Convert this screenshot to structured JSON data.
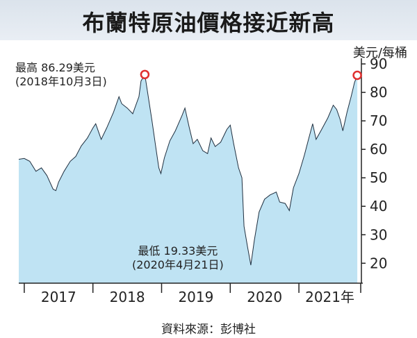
{
  "title": "布蘭特原油價格接近新高",
  "unit_label": "美元/每桶",
  "source": "資料來源：彭博社",
  "annotations": {
    "max": {
      "line1": "最高 86.29美元",
      "line2": "(2018年10月3日)"
    },
    "min": {
      "line1": "最低 19.33美元",
      "line2": "(2020年4月21日)"
    }
  },
  "colors": {
    "area_fill": "#bfe3f3",
    "line": "#1f2f3f",
    "marker": "#e0302f",
    "axis": "#222222"
  },
  "chart_data": {
    "type": "area",
    "title": "布蘭特原油價格接近新高",
    "ylabel": "美元/每桶",
    "ylim": [
      13,
      91
    ],
    "yticks": [
      20,
      30,
      40,
      50,
      60,
      70,
      80,
      90
    ],
    "xlim": [
      2016.92,
      2021.91
    ],
    "year_ticks": [
      2017,
      2018,
      2019,
      2020,
      2021,
      2021.9
    ],
    "year_labels": [
      {
        "label": "2017",
        "pos": 2017.5
      },
      {
        "label": "2018",
        "pos": 2018.5
      },
      {
        "label": "2019",
        "pos": 2019.5
      },
      {
        "label": "2020",
        "pos": 2020.5
      },
      {
        "label": "2021年",
        "pos": 2021.45
      }
    ],
    "series": [
      {
        "points": [
          [
            2016.92,
            56.5
          ],
          [
            2017.0,
            56.8
          ],
          [
            2017.08,
            55.8
          ],
          [
            2017.17,
            52.3
          ],
          [
            2017.25,
            53.5
          ],
          [
            2017.33,
            50.8
          ],
          [
            2017.42,
            46.0
          ],
          [
            2017.46,
            45.5
          ],
          [
            2017.5,
            48.5
          ],
          [
            2017.58,
            52.3
          ],
          [
            2017.67,
            55.8
          ],
          [
            2017.75,
            57.5
          ],
          [
            2017.83,
            61.2
          ],
          [
            2017.92,
            64.0
          ],
          [
            2018.0,
            67.5
          ],
          [
            2018.04,
            69.0
          ],
          [
            2018.12,
            63.5
          ],
          [
            2018.2,
            67.5
          ],
          [
            2018.3,
            73.0
          ],
          [
            2018.38,
            78.5
          ],
          [
            2018.42,
            76.0
          ],
          [
            2018.5,
            74.5
          ],
          [
            2018.58,
            72.5
          ],
          [
            2018.67,
            78.5
          ],
          [
            2018.7,
            84.0
          ],
          [
            2018.756,
            86.29
          ],
          [
            2018.8,
            79.5
          ],
          [
            2018.86,
            70.0
          ],
          [
            2018.92,
            60.0
          ],
          [
            2018.96,
            53.5
          ],
          [
            2018.99,
            51.5
          ],
          [
            2019.04,
            57.0
          ],
          [
            2019.12,
            63.0
          ],
          [
            2019.2,
            66.5
          ],
          [
            2019.3,
            72.0
          ],
          [
            2019.34,
            74.5
          ],
          [
            2019.4,
            68.0
          ],
          [
            2019.46,
            62.0
          ],
          [
            2019.52,
            63.5
          ],
          [
            2019.6,
            59.5
          ],
          [
            2019.67,
            58.5
          ],
          [
            2019.72,
            64.0
          ],
          [
            2019.78,
            61.0
          ],
          [
            2019.86,
            62.5
          ],
          [
            2019.95,
            67.0
          ],
          [
            2020.0,
            68.5
          ],
          [
            2020.05,
            62.0
          ],
          [
            2020.12,
            53.5
          ],
          [
            2020.17,
            50.0
          ],
          [
            2020.2,
            33.0
          ],
          [
            2020.25,
            26.0
          ],
          [
            2020.3,
            19.33
          ],
          [
            2020.35,
            28.0
          ],
          [
            2020.42,
            38.0
          ],
          [
            2020.5,
            42.5
          ],
          [
            2020.58,
            44.0
          ],
          [
            2020.67,
            45.0
          ],
          [
            2020.72,
            41.5
          ],
          [
            2020.8,
            41.0
          ],
          [
            2020.86,
            38.5
          ],
          [
            2020.92,
            46.5
          ],
          [
            2021.0,
            51.5
          ],
          [
            2021.08,
            58.0
          ],
          [
            2021.14,
            63.5
          ],
          [
            2021.2,
            69.0
          ],
          [
            2021.25,
            63.5
          ],
          [
            2021.32,
            66.5
          ],
          [
            2021.42,
            71.0
          ],
          [
            2021.5,
            75.5
          ],
          [
            2021.55,
            74.0
          ],
          [
            2021.6,
            70.5
          ],
          [
            2021.64,
            66.5
          ],
          [
            2021.7,
            73.0
          ],
          [
            2021.76,
            78.5
          ],
          [
            2021.81,
            83.5
          ],
          [
            2021.85,
            86.0
          ]
        ]
      }
    ],
    "highlights": [
      {
        "x": 2018.756,
        "y": 86.29
      },
      {
        "x": 2021.85,
        "y": 86.0
      }
    ]
  }
}
